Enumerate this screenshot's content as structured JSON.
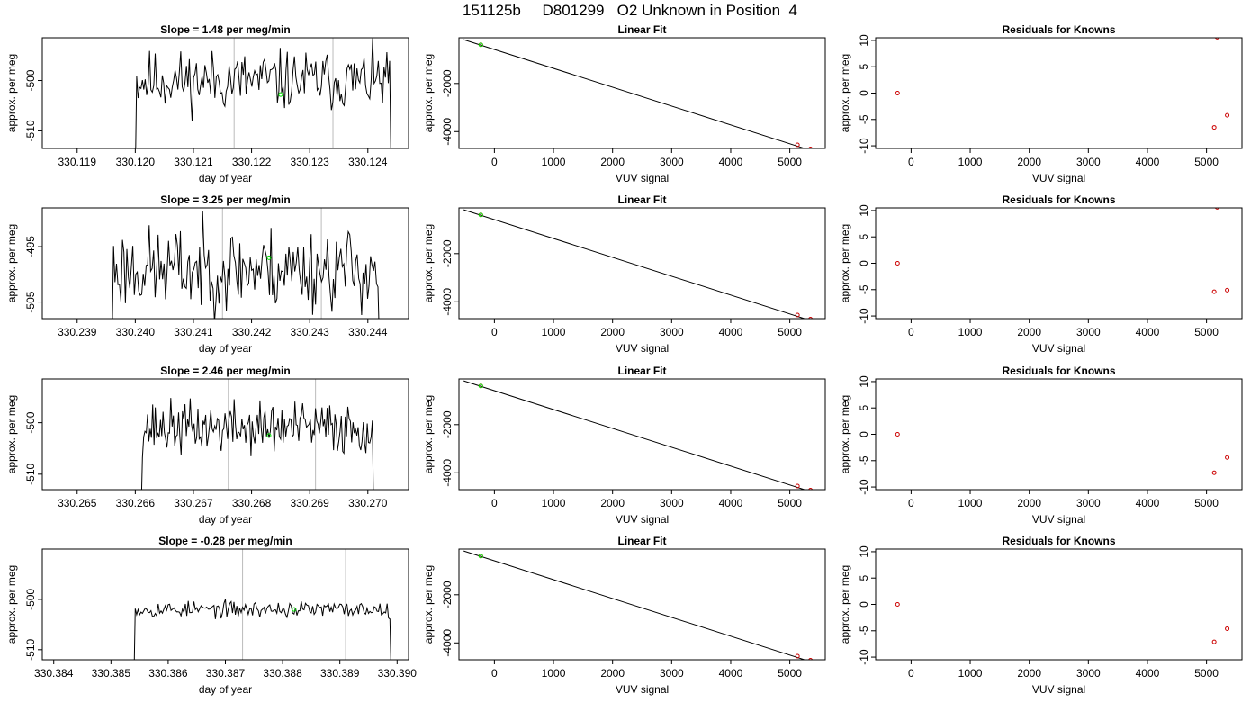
{
  "page": {
    "title": "151125b     D801299   O2 Unknown in Position  4"
  },
  "chart_data": [
    {
      "type": "line",
      "row": 0,
      "col": 0,
      "title": "Slope =  1.48  per meg/min",
      "xlabel": "day of year",
      "ylabel": "approx. per meg",
      "xlim": [
        330.1184,
        330.1247
      ],
      "ylim": [
        -513.5,
        -491.5
      ],
      "xticks": [
        330.119,
        330.12,
        330.121,
        330.122,
        330.123,
        330.124
      ],
      "xticklabels": [
        "330.119",
        "330.120",
        "330.121",
        "330.122",
        "330.123",
        "330.124"
      ],
      "yticks": [
        -510,
        -500
      ],
      "yticklabels": [
        "-510",
        "-500"
      ],
      "series_seed": 11,
      "series_start": 330.12,
      "series_end": 330.1244,
      "series_amp": 5.5,
      "series_center": -500,
      "vlines": [
        330.1217,
        330.1234
      ],
      "markers": [
        {
          "x": 330.1225,
          "y": -502.8,
          "color": "#00dd00"
        }
      ]
    },
    {
      "type": "line",
      "row": 0,
      "col": 1,
      "title": "Linear Fit",
      "xlabel": "VUV signal",
      "ylabel": "approx. per meg",
      "xlim": [
        -600,
        5600
      ],
      "ylim": [
        -4700,
        -100
      ],
      "xticks": [
        0,
        1000,
        2000,
        3000,
        4000,
        5000
      ],
      "xticklabels": [
        "0",
        "1000",
        "2000",
        "3000",
        "4000",
        "5000"
      ],
      "yticks": [
        -4000,
        -2000
      ],
      "yticklabels": [
        "-4000",
        "-2000"
      ],
      "line": [
        [
          -520,
          -180
        ],
        [
          5350,
          -4780
        ]
      ],
      "points": [
        {
          "x": -230,
          "y": -390,
          "color": "#cc0000"
        },
        {
          "x": 5130,
          "y": -4550,
          "color": "#cc0000"
        },
        {
          "x": 5350,
          "y": -4720,
          "color": "#cc0000"
        },
        {
          "x": -230,
          "y": -395,
          "color": "#00dd00"
        }
      ]
    },
    {
      "type": "scatter",
      "row": 0,
      "col": 2,
      "title": "Residuals for Knowns",
      "xlabel": "VUV signal",
      "ylabel": "approx. per meg",
      "xlim": [
        -600,
        5600
      ],
      "ylim": [
        -10.5,
        10.5
      ],
      "xticks": [
        0,
        1000,
        2000,
        3000,
        4000,
        5000
      ],
      "xticklabels": [
        "0",
        "1000",
        "2000",
        "3000",
        "4000",
        "5000"
      ],
      "yticks": [
        -10,
        -5,
        0,
        5,
        10
      ],
      "yticklabels": [
        "-10",
        "-5",
        "0",
        "5",
        "10"
      ],
      "points": [
        {
          "x": -230,
          "y": 0.0,
          "color": "#cc0000"
        },
        {
          "x": 5130,
          "y": -6.5,
          "color": "#cc0000"
        },
        {
          "x": 5350,
          "y": -4.2,
          "color": "#cc0000"
        },
        {
          "x": 5180,
          "y": 10.6,
          "color": "#cc0000"
        }
      ]
    },
    {
      "type": "line",
      "row": 1,
      "col": 0,
      "title": "Slope =  3.25  per meg/min",
      "xlabel": "day of year",
      "ylabel": "approx. per meg",
      "xlim": [
        330.2384,
        330.2447
      ],
      "ylim": [
        -508,
        -488
      ],
      "xticks": [
        330.239,
        330.24,
        330.241,
        330.242,
        330.243,
        330.244
      ],
      "xticklabels": [
        "330.239",
        "330.240",
        "330.241",
        "330.242",
        "330.243",
        "330.244"
      ],
      "yticks": [
        -505,
        -495
      ],
      "yticklabels": [
        "-505",
        "-495"
      ],
      "series_seed": 23,
      "series_start": 330.2396,
      "series_end": 330.2442,
      "series_amp": 7,
      "series_center": -499,
      "vlines": [
        330.2415,
        330.2432
      ],
      "markers": [
        {
          "x": 330.2423,
          "y": -497.0,
          "color": "#00dd00"
        }
      ]
    },
    {
      "type": "line",
      "row": 1,
      "col": 1,
      "title": "Linear Fit",
      "xlabel": "VUV signal",
      "ylabel": "approx. per meg",
      "xlim": [
        -600,
        5600
      ],
      "ylim": [
        -4700,
        -100
      ],
      "xticks": [
        0,
        1000,
        2000,
        3000,
        4000,
        5000
      ],
      "xticklabels": [
        "0",
        "1000",
        "2000",
        "3000",
        "4000",
        "5000"
      ],
      "yticks": [
        -4000,
        -2000
      ],
      "yticklabels": [
        "-4000",
        "-2000"
      ],
      "line": [
        [
          -520,
          -180
        ],
        [
          5350,
          -4780
        ]
      ],
      "points": [
        {
          "x": -230,
          "y": -390,
          "color": "#cc0000"
        },
        {
          "x": 5130,
          "y": -4550,
          "color": "#cc0000"
        },
        {
          "x": 5350,
          "y": -4720,
          "color": "#cc0000"
        },
        {
          "x": -230,
          "y": -395,
          "color": "#00dd00"
        }
      ]
    },
    {
      "type": "scatter",
      "row": 1,
      "col": 2,
      "title": "Residuals for Knowns",
      "xlabel": "VUV signal",
      "ylabel": "approx. per meg",
      "xlim": [
        -600,
        5600
      ],
      "ylim": [
        -10.5,
        10.5
      ],
      "xticks": [
        0,
        1000,
        2000,
        3000,
        4000,
        5000
      ],
      "xticklabels": [
        "0",
        "1000",
        "2000",
        "3000",
        "4000",
        "5000"
      ],
      "yticks": [
        -10,
        -5,
        0,
        5,
        10
      ],
      "yticklabels": [
        "-10",
        "-5",
        "0",
        "5",
        "10"
      ],
      "points": [
        {
          "x": -230,
          "y": 0.0,
          "color": "#cc0000"
        },
        {
          "x": 5130,
          "y": -5.4,
          "color": "#cc0000"
        },
        {
          "x": 5350,
          "y": -5.1,
          "color": "#cc0000"
        },
        {
          "x": 5180,
          "y": 10.6,
          "color": "#cc0000"
        }
      ]
    },
    {
      "type": "line",
      "row": 2,
      "col": 0,
      "title": "Slope =  2.46  per meg/min",
      "xlabel": "day of year",
      "ylabel": "approx. per meg",
      "xlim": [
        330.2644,
        330.2707
      ],
      "ylim": [
        -513,
        -491.5
      ],
      "xticks": [
        330.265,
        330.266,
        330.267,
        330.268,
        330.269,
        330.27
      ],
      "xticklabels": [
        "330.265",
        "330.266",
        "330.267",
        "330.268",
        "330.269",
        "330.270"
      ],
      "yticks": [
        -510,
        -500
      ],
      "yticklabels": [
        "-510",
        "-500"
      ],
      "series_seed": 37,
      "series_start": 330.2661,
      "series_end": 330.2701,
      "series_amp": 4.8,
      "series_center": -501,
      "vlines": [
        330.2676,
        330.2691
      ],
      "markers": [
        {
          "x": 330.2683,
          "y": -502.5,
          "color": "#00dd00"
        }
      ]
    },
    {
      "type": "line",
      "row": 2,
      "col": 1,
      "title": "Linear Fit",
      "xlabel": "VUV signal",
      "ylabel": "approx. per meg",
      "xlim": [
        -600,
        5600
      ],
      "ylim": [
        -4700,
        -100
      ],
      "xticks": [
        0,
        1000,
        2000,
        3000,
        4000,
        5000
      ],
      "xticklabels": [
        "0",
        "1000",
        "2000",
        "3000",
        "4000",
        "5000"
      ],
      "yticks": [
        -4000,
        -2000
      ],
      "yticklabels": [
        "-4000",
        "-2000"
      ],
      "line": [
        [
          -520,
          -180
        ],
        [
          5350,
          -4780
        ]
      ],
      "points": [
        {
          "x": -230,
          "y": -390,
          "color": "#cc0000"
        },
        {
          "x": 5130,
          "y": -4550,
          "color": "#cc0000"
        },
        {
          "x": 5350,
          "y": -4720,
          "color": "#cc0000"
        },
        {
          "x": -230,
          "y": -395,
          "color": "#00dd00"
        }
      ]
    },
    {
      "type": "scatter",
      "row": 2,
      "col": 2,
      "title": "Residuals for Knowns",
      "xlabel": "VUV signal",
      "ylabel": "approx. per meg",
      "xlim": [
        -600,
        5600
      ],
      "ylim": [
        -10.5,
        10.5
      ],
      "xticks": [
        0,
        1000,
        2000,
        3000,
        4000,
        5000
      ],
      "xticklabels": [
        "0",
        "1000",
        "2000",
        "3000",
        "4000",
        "5000"
      ],
      "yticks": [
        -10,
        -5,
        0,
        5,
        10
      ],
      "yticklabels": [
        "-10",
        "-5",
        "0",
        "5",
        "10"
      ],
      "points": [
        {
          "x": -230,
          "y": 0.0,
          "color": "#cc0000"
        },
        {
          "x": 5130,
          "y": -7.3,
          "color": "#cc0000"
        },
        {
          "x": 5350,
          "y": -4.4,
          "color": "#cc0000"
        }
      ]
    },
    {
      "type": "line",
      "row": 3,
      "col": 0,
      "title": "Slope =  -0.28  per meg/min",
      "xlabel": "day of year",
      "ylabel": "approx. per meg",
      "xlim": [
        330.3838,
        330.3902
      ],
      "ylim": [
        -512,
        -490
      ],
      "xticks": [
        330.384,
        330.385,
        330.386,
        330.387,
        330.388,
        330.389,
        330.39
      ],
      "xticklabels": [
        "330.384",
        "330.385",
        "330.386",
        "330.387",
        "330.388",
        "330.389",
        "330.390"
      ],
      "yticks": [
        -510,
        -500
      ],
      "yticklabels": [
        "-510",
        "-500"
      ],
      "series_seed": 53,
      "series_start": 330.3854,
      "series_end": 330.3899,
      "series_amp": 1.5,
      "series_center": -502,
      "vlines": [
        330.3873,
        330.3891
      ],
      "markers": [
        {
          "x": 330.3882,
          "y": -502.0,
          "color": "#00dd00"
        }
      ]
    },
    {
      "type": "line",
      "row": 3,
      "col": 1,
      "title": "Linear Fit",
      "xlabel": "VUV signal",
      "ylabel": "approx. per meg",
      "xlim": [
        -600,
        5600
      ],
      "ylim": [
        -4700,
        -100
      ],
      "xticks": [
        0,
        1000,
        2000,
        3000,
        4000,
        5000
      ],
      "xticklabels": [
        "0",
        "1000",
        "2000",
        "3000",
        "4000",
        "5000"
      ],
      "yticks": [
        -4000,
        -2000
      ],
      "yticklabels": [
        "-4000",
        "-2000"
      ],
      "line": [
        [
          -520,
          -180
        ],
        [
          5350,
          -4780
        ]
      ],
      "points": [
        {
          "x": -230,
          "y": -390,
          "color": "#cc0000"
        },
        {
          "x": 5130,
          "y": -4550,
          "color": "#cc0000"
        },
        {
          "x": 5350,
          "y": -4720,
          "color": "#cc0000"
        },
        {
          "x": -230,
          "y": -395,
          "color": "#00dd00"
        }
      ]
    },
    {
      "type": "scatter",
      "row": 3,
      "col": 2,
      "title": "Residuals for Knowns",
      "xlabel": "VUV signal",
      "ylabel": "approx. per meg",
      "xlim": [
        -600,
        5600
      ],
      "ylim": [
        -10.5,
        10.5
      ],
      "xticks": [
        0,
        1000,
        2000,
        3000,
        4000,
        5000
      ],
      "xticklabels": [
        "0",
        "1000",
        "2000",
        "3000",
        "4000",
        "5000"
      ],
      "yticks": [
        -10,
        -5,
        0,
        5,
        10
      ],
      "yticklabels": [
        "-10",
        "-5",
        "0",
        "5",
        "10"
      ],
      "points": [
        {
          "x": -230,
          "y": 0.0,
          "color": "#cc0000"
        },
        {
          "x": 5130,
          "y": -7.1,
          "color": "#cc0000"
        },
        {
          "x": 5350,
          "y": -4.6,
          "color": "#cc0000"
        }
      ]
    }
  ]
}
